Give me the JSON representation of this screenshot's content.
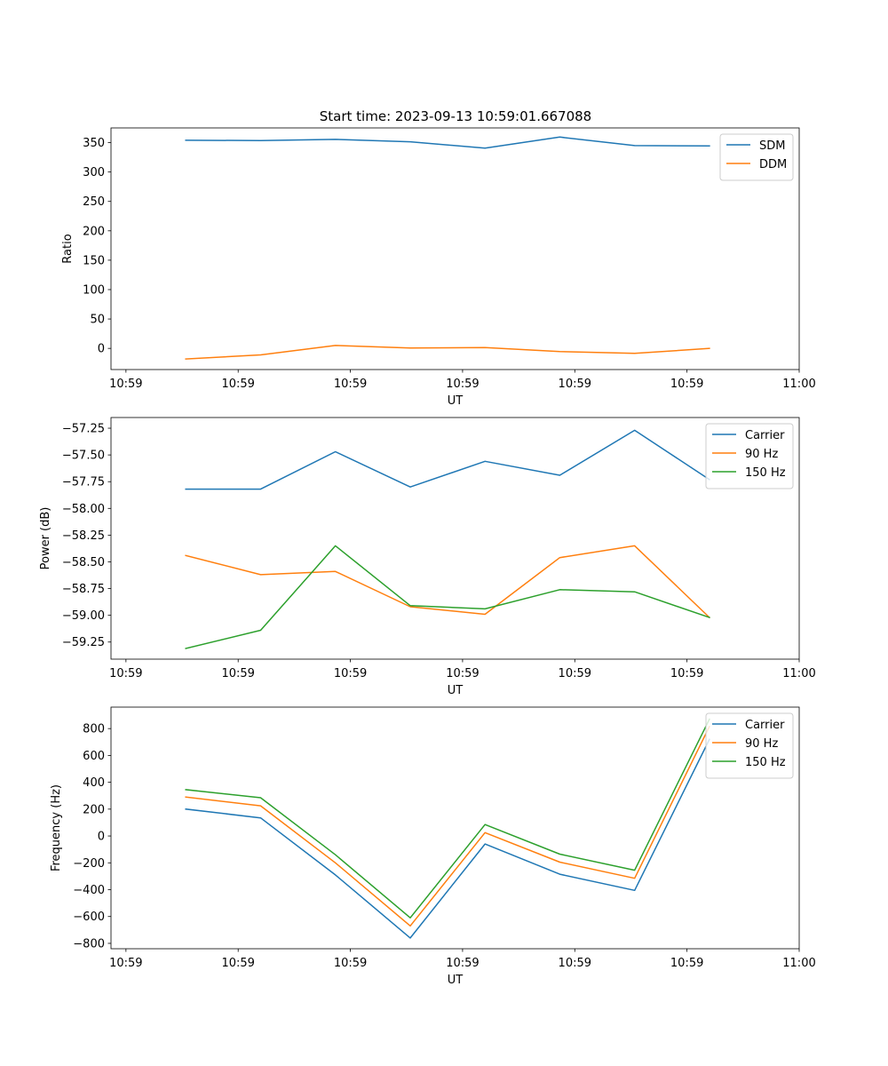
{
  "figure_title": "Start time: 2023-09-13 10:59:01.667088",
  "colors": {
    "blue": "#1f77b4",
    "orange": "#ff7f0e",
    "green": "#2ca02c"
  },
  "chart_data": [
    {
      "type": "line",
      "title": "Start time: 2023-09-13 10:59:01.667088",
      "xlabel": "UT",
      "ylabel": "Ratio",
      "x_time_seconds": [
        0.5,
        1.0,
        1.5,
        2.0,
        2.5,
        3.0,
        3.5,
        4.0
      ],
      "xlim": [
        0.0,
        4.6
      ],
      "x_ticks": [
        0.1,
        0.85,
        1.6,
        2.35,
        3.1,
        3.85,
        4.6
      ],
      "x_tick_labels": [
        "10:59",
        "10:59",
        "10:59",
        "10:59",
        "10:59",
        "10:59",
        "11:00"
      ],
      "ylim": [
        -36,
        375
      ],
      "y_ticks": [
        0,
        50,
        100,
        150,
        200,
        250,
        300,
        350
      ],
      "y_tick_labels": [
        "0",
        "50",
        "100",
        "150",
        "200",
        "250",
        "300",
        "350"
      ],
      "legend_position": "top-right",
      "series": [
        {
          "name": "SDM",
          "color": "#1f77b4",
          "values": [
            354,
            353.5,
            355.5,
            351.5,
            340.5,
            359.5,
            345,
            344.5
          ]
        },
        {
          "name": "DDM",
          "color": "#ff7f0e",
          "values": [
            -18,
            -11,
            5,
            0.5,
            1.5,
            -5.5,
            -8.5,
            0
          ]
        }
      ]
    },
    {
      "type": "line",
      "title": "",
      "xlabel": "UT",
      "ylabel": "Power (dB)",
      "x_time_seconds": [
        0.5,
        1.0,
        1.5,
        2.0,
        2.5,
        3.0,
        3.5,
        4.0
      ],
      "xlim": [
        0.0,
        4.6
      ],
      "x_ticks": [
        0.1,
        0.85,
        1.6,
        2.35,
        3.1,
        3.85,
        4.6
      ],
      "x_tick_labels": [
        "10:59",
        "10:59",
        "10:59",
        "10:59",
        "10:59",
        "10:59",
        "11:00"
      ],
      "ylim": [
        -59.41,
        -57.15
      ],
      "y_ticks": [
        -59.25,
        -59.0,
        -58.75,
        -58.5,
        -58.25,
        -58.0,
        -57.75,
        -57.5,
        -57.25
      ],
      "y_tick_labels": [
        "−59.25",
        "−59.00",
        "−58.75",
        "−58.50",
        "−58.25",
        "−58.00",
        "−57.75",
        "−57.50",
        "−57.25"
      ],
      "legend_position": "top-right",
      "series": [
        {
          "name": "Carrier",
          "color": "#1f77b4",
          "values": [
            -57.82,
            -57.82,
            -57.47,
            -57.8,
            -57.56,
            -57.69,
            -57.27,
            -57.73
          ]
        },
        {
          "name": "90 Hz",
          "color": "#ff7f0e",
          "values": [
            -58.44,
            -58.62,
            -58.59,
            -58.92,
            -58.99,
            -58.46,
            -58.35,
            -59.02
          ]
        },
        {
          "name": "150 Hz",
          "color": "#2ca02c",
          "values": [
            -59.31,
            -59.14,
            -58.35,
            -58.91,
            -58.94,
            -58.76,
            -58.78,
            -59.02
          ]
        }
      ]
    },
    {
      "type": "line",
      "title": "",
      "xlabel": "UT",
      "ylabel": "Frequency (Hz)",
      "x_time_seconds": [
        0.5,
        1.0,
        1.5,
        2.0,
        2.5,
        3.0,
        3.5,
        4.0
      ],
      "xlim": [
        0.0,
        4.6
      ],
      "x_ticks": [
        0.1,
        0.85,
        1.6,
        2.35,
        3.1,
        3.85,
        4.6
      ],
      "x_tick_labels": [
        "10:59",
        "10:59",
        "10:59",
        "10:59",
        "10:59",
        "10:59",
        "11:00"
      ],
      "ylim": [
        -840,
        960
      ],
      "y_ticks": [
        -800,
        -600,
        -400,
        -200,
        0,
        200,
        400,
        600,
        800
      ],
      "y_tick_labels": [
        "−800",
        "−600",
        "−400",
        "−200",
        "0",
        "200",
        "400",
        "600",
        "800"
      ],
      "legend_position": "top-right",
      "series": [
        {
          "name": "Carrier",
          "color": "#1f77b4",
          "values": [
            200,
            135,
            -290,
            -760,
            -60,
            -285,
            -405,
            720
          ]
        },
        {
          "name": "90 Hz",
          "color": "#ff7f0e",
          "values": [
            290,
            225,
            -200,
            -670,
            25,
            -195,
            -315,
            815
          ]
        },
        {
          "name": "150 Hz",
          "color": "#2ca02c",
          "values": [
            345,
            285,
            -140,
            -610,
            85,
            -135,
            -255,
            870
          ]
        }
      ]
    }
  ]
}
